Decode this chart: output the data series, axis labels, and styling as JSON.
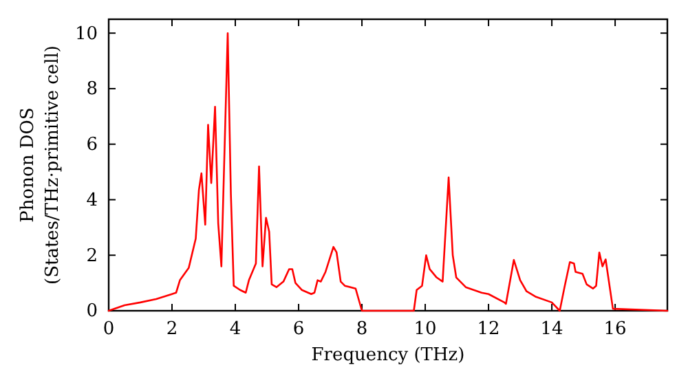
{
  "chart_data": {
    "type": "line",
    "xlabel": "Frequency (THz)",
    "ylabel": "Phonon DOS\n(States/THz·primitive cell)",
    "xlim": [
      0,
      17.65
    ],
    "ylim": [
      0,
      10.5
    ],
    "xticks": [
      0,
      2,
      4,
      6,
      8,
      10,
      12,
      14,
      16
    ],
    "yticks": [
      0,
      2,
      4,
      6,
      8,
      10
    ],
    "grid": false,
    "line_style": "solid",
    "marker": "none",
    "series": [
      {
        "color": "#ff0000",
        "x": [
          0,
          0.5,
          1.0,
          1.5,
          2.0,
          2.13,
          2.25,
          2.53,
          2.75,
          2.85,
          2.93,
          3.05,
          3.14,
          3.24,
          3.36,
          3.46,
          3.56,
          3.76,
          3.86,
          3.95,
          4.15,
          4.33,
          4.43,
          4.65,
          4.75,
          4.86,
          4.97,
          5.07,
          5.15,
          5.3,
          5.52,
          5.7,
          5.8,
          5.9,
          6.1,
          6.4,
          6.5,
          6.6,
          6.7,
          6.85,
          7.1,
          7.2,
          7.33,
          7.46,
          7.8,
          8.0,
          9.64,
          9.73,
          9.9,
          10.03,
          10.14,
          10.36,
          10.55,
          10.74,
          10.87,
          10.98,
          11.28,
          11.78,
          12.0,
          12.5,
          12.55,
          12.8,
          13.0,
          13.2,
          13.5,
          14.0,
          14.25,
          14.4,
          14.57,
          14.7,
          14.75,
          14.97,
          15.1,
          15.3,
          15.4,
          15.5,
          15.6,
          15.7,
          15.93,
          17.65
        ],
        "values": [
          0,
          0.2,
          0.3,
          0.42,
          0.6,
          0.65,
          1.1,
          1.55,
          2.6,
          4.35,
          4.95,
          3.1,
          6.7,
          4.6,
          7.35,
          3.15,
          1.6,
          10.0,
          4.2,
          0.9,
          0.75,
          0.65,
          1.1,
          1.7,
          5.2,
          1.6,
          3.35,
          2.85,
          0.95,
          0.85,
          1.05,
          1.5,
          1.5,
          1.0,
          0.75,
          0.6,
          0.65,
          1.1,
          1.05,
          1.4,
          2.3,
          2.1,
          1.05,
          0.9,
          0.8,
          0,
          0,
          0.75,
          0.9,
          2.0,
          1.5,
          1.2,
          1.05,
          4.8,
          2.0,
          1.2,
          0.85,
          0.65,
          0.6,
          0.3,
          0.25,
          1.83,
          1.1,
          0.7,
          0.5,
          0.3,
          0,
          0.85,
          1.75,
          1.7,
          1.4,
          1.33,
          0.95,
          0.8,
          0.9,
          2.1,
          1.6,
          1.85,
          0.07,
          0.0
        ]
      }
    ]
  }
}
